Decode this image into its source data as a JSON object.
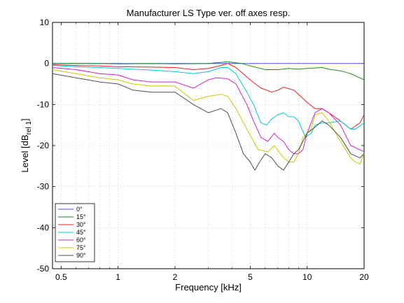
{
  "chart_data": {
    "type": "line",
    "title": "Manufacturer LS Type ver. off axes resp.",
    "xlabel": "Frequency [kHz]",
    "ylabel_main": "Level [dB",
    "ylabel_sub": "rel 1",
    "ylabel_end": "]",
    "x_scale": "log",
    "xlim": [
      0.45,
      20
    ],
    "ylim": [
      -50,
      10
    ],
    "x_ticks": [
      0.5,
      1,
      2,
      5,
      10,
      20
    ],
    "x_tick_labels": [
      "0.5",
      "1",
      "2",
      "5",
      "10",
      "20"
    ],
    "y_ticks": [
      10,
      0,
      -10,
      -20,
      -30,
      -40,
      -50
    ],
    "y_tick_labels": [
      "10",
      "0",
      "-10",
      "-20",
      "-30",
      "-40",
      "-50"
    ],
    "grid": true,
    "legend_position": "bottom-left",
    "series": [
      {
        "name": "0°",
        "color": "#4b4bff",
        "points": [
          [
            0.45,
            0
          ],
          [
            1,
            0
          ],
          [
            2,
            0
          ],
          [
            5,
            0
          ],
          [
            10,
            0
          ],
          [
            20,
            0
          ]
        ]
      },
      {
        "name": "15°",
        "color": "#1a8a1a",
        "points": [
          [
            0.45,
            0
          ],
          [
            0.7,
            0
          ],
          [
            1,
            -0.1
          ],
          [
            1.5,
            0
          ],
          [
            2,
            -0.1
          ],
          [
            3,
            0
          ],
          [
            3.8,
            0.4
          ],
          [
            4.5,
            0
          ],
          [
            5,
            -0.6
          ],
          [
            6,
            -1.5
          ],
          [
            7,
            -1.5
          ],
          [
            8,
            -1.2
          ],
          [
            9,
            -1.4
          ],
          [
            10,
            -1.2
          ],
          [
            11,
            -1.1
          ],
          [
            12,
            -1
          ],
          [
            13,
            -1.4
          ],
          [
            15,
            -1.8
          ],
          [
            17,
            -2.5
          ],
          [
            20,
            -4
          ]
        ]
      },
      {
        "name": "30°",
        "color": "#e02020",
        "points": [
          [
            0.45,
            -0.3
          ],
          [
            0.6,
            -0.5
          ],
          [
            0.8,
            -0.6
          ],
          [
            1,
            -0.8
          ],
          [
            1.5,
            -0.9
          ],
          [
            2,
            -1
          ],
          [
            2.5,
            -1.5
          ],
          [
            3,
            -1.2
          ],
          [
            3.5,
            -0.5
          ],
          [
            3.8,
            0
          ],
          [
            4.2,
            -1
          ],
          [
            5,
            -4
          ],
          [
            5.7,
            -6
          ],
          [
            6.5,
            -7
          ],
          [
            7,
            -6.5
          ],
          [
            7.5,
            -5.8
          ],
          [
            8.5,
            -6.5
          ],
          [
            9,
            -7.5
          ],
          [
            10,
            -9.5
          ],
          [
            11,
            -11
          ],
          [
            12,
            -11
          ],
          [
            13,
            -12
          ],
          [
            15,
            -14
          ],
          [
            17,
            -16
          ],
          [
            19,
            -14.5
          ],
          [
            20,
            -12.5
          ]
        ]
      },
      {
        "name": "45°",
        "color": "#00c8d8",
        "points": [
          [
            0.45,
            -0.5
          ],
          [
            0.6,
            -0.8
          ],
          [
            0.8,
            -1
          ],
          [
            1,
            -1.2
          ],
          [
            1.5,
            -1.6
          ],
          [
            2,
            -2
          ],
          [
            2.5,
            -2.5
          ],
          [
            3,
            -2
          ],
          [
            3.5,
            -1
          ],
          [
            3.8,
            -1
          ],
          [
            4.2,
            -2.5
          ],
          [
            4.8,
            -7
          ],
          [
            5.2,
            -10
          ],
          [
            5.7,
            -14.5
          ],
          [
            6.1,
            -15
          ],
          [
            6.5,
            -13.5
          ],
          [
            7,
            -12.5
          ],
          [
            7.5,
            -12
          ],
          [
            8,
            -13
          ],
          [
            8.5,
            -13
          ],
          [
            9,
            -14
          ],
          [
            9.8,
            -18
          ],
          [
            10.5,
            -17
          ],
          [
            11,
            -15
          ],
          [
            12,
            -14.5
          ],
          [
            13,
            -14.5
          ],
          [
            15,
            -14
          ],
          [
            17,
            -16
          ],
          [
            18,
            -16
          ],
          [
            20,
            -14.5
          ]
        ]
      },
      {
        "name": "60°",
        "color": "#d020d0",
        "points": [
          [
            0.45,
            -1
          ],
          [
            0.6,
            -1.5
          ],
          [
            0.8,
            -2.5
          ],
          [
            1,
            -2.8
          ],
          [
            1.2,
            -4
          ],
          [
            1.5,
            -4.5
          ],
          [
            1.8,
            -4.5
          ],
          [
            2,
            -4.5
          ],
          [
            2.5,
            -6
          ],
          [
            3,
            -4
          ],
          [
            3.3,
            -3.5
          ],
          [
            3.8,
            -3.7
          ],
          [
            4.2,
            -5
          ],
          [
            4.8,
            -10
          ],
          [
            5.2,
            -14
          ],
          [
            5.7,
            -18
          ],
          [
            6.2,
            -19
          ],
          [
            6.7,
            -17
          ],
          [
            7,
            -18
          ],
          [
            7.5,
            -19
          ],
          [
            8,
            -21
          ],
          [
            8.5,
            -22
          ],
          [
            9,
            -22
          ],
          [
            9.5,
            -21
          ],
          [
            10,
            -17
          ],
          [
            11,
            -12
          ],
          [
            12,
            -11
          ],
          [
            13,
            -12
          ],
          [
            15,
            -15
          ],
          [
            17,
            -20
          ],
          [
            20,
            -21.5
          ]
        ]
      },
      {
        "name": "75°",
        "color": "#c8c800",
        "points": [
          [
            0.45,
            -1.5
          ],
          [
            0.6,
            -2.5
          ],
          [
            0.8,
            -3.5
          ],
          [
            1,
            -4
          ],
          [
            1.2,
            -5
          ],
          [
            1.5,
            -5.5
          ],
          [
            2,
            -5.5
          ],
          [
            2.5,
            -9
          ],
          [
            3,
            -8
          ],
          [
            3.5,
            -7.5
          ],
          [
            3.8,
            -8
          ],
          [
            4.2,
            -11
          ],
          [
            4.8,
            -16
          ],
          [
            5.5,
            -21
          ],
          [
            6.2,
            -21.5
          ],
          [
            6.7,
            -20
          ],
          [
            7.5,
            -23
          ],
          [
            8,
            -24
          ],
          [
            8.5,
            -24
          ],
          [
            9,
            -22
          ],
          [
            9.5,
            -18
          ],
          [
            10.5,
            -16
          ],
          [
            11,
            -12.5
          ],
          [
            12,
            -12
          ],
          [
            13,
            -14
          ],
          [
            15,
            -19
          ],
          [
            17,
            -23
          ],
          [
            18,
            -24
          ],
          [
            19,
            -24.5
          ],
          [
            20,
            -22
          ]
        ]
      },
      {
        "name": "90°",
        "color": "#505050",
        "points": [
          [
            0.45,
            -2.5
          ],
          [
            0.6,
            -3.5
          ],
          [
            0.8,
            -4.5
          ],
          [
            1,
            -5
          ],
          [
            1.2,
            -6.5
          ],
          [
            1.5,
            -7
          ],
          [
            2,
            -7
          ],
          [
            2.5,
            -10
          ],
          [
            3,
            -12
          ],
          [
            3.5,
            -11
          ],
          [
            3.8,
            -12
          ],
          [
            4.2,
            -17
          ],
          [
            4.6,
            -22
          ],
          [
            5,
            -24
          ],
          [
            5.3,
            -26
          ],
          [
            5.6,
            -24
          ],
          [
            6,
            -22
          ],
          [
            6.5,
            -23
          ],
          [
            7,
            -25
          ],
          [
            7.5,
            -26
          ],
          [
            8,
            -24
          ],
          [
            8.5,
            -22
          ],
          [
            9,
            -21
          ],
          [
            9.5,
            -19
          ],
          [
            10,
            -17
          ],
          [
            11,
            -15.5
          ],
          [
            12,
            -14
          ],
          [
            13,
            -15
          ],
          [
            15,
            -18
          ],
          [
            17,
            -22
          ],
          [
            19,
            -23
          ],
          [
            20,
            -22
          ]
        ]
      }
    ]
  }
}
